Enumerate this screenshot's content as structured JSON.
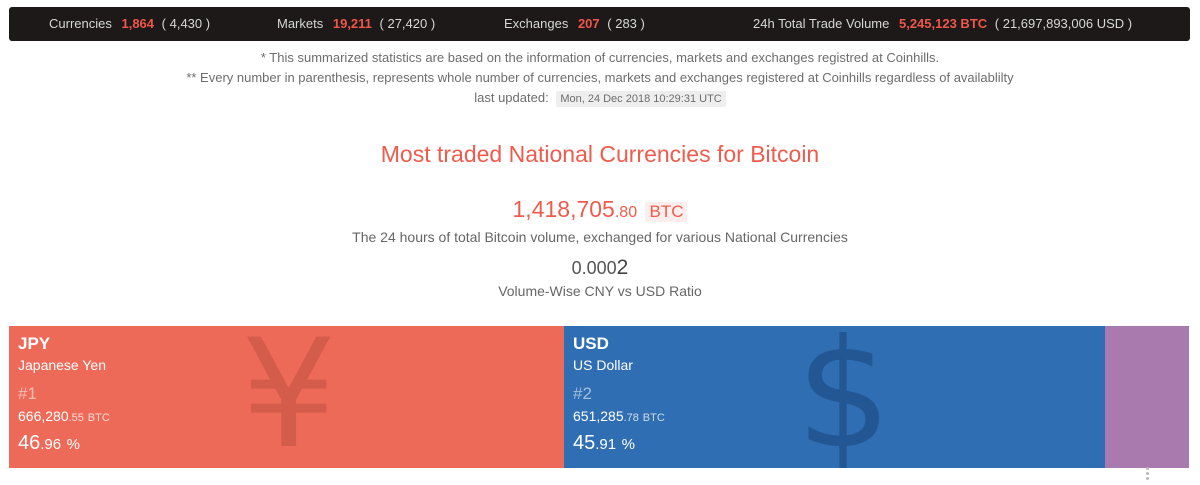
{
  "topbar": {
    "currencies": {
      "label": "Currencies",
      "value": "1,864",
      "total": "( 4,430 )"
    },
    "markets": {
      "label": "Markets",
      "value": "19,211",
      "total": "( 27,420 )"
    },
    "exchanges": {
      "label": "Exchanges",
      "value": "207",
      "total": "( 283 )"
    },
    "volume": {
      "label": "24h Total Trade Volume",
      "value": "5,245,123 BTC",
      "total": "( 21,697,893,006 USD )"
    }
  },
  "notes": {
    "line1": "* This summarized statistics are based on the information of currencies, markets and exchanges registred at Coinhills.",
    "line2": "** Every number in parenthesis, represents whole number of currencies, markets and exchanges registered at Coinhills regardless of availablilty",
    "updated_label": "last updated:",
    "updated_value": "Mon, 24 Dec 2018 10:29:31 UTC"
  },
  "headline": "Most traded National Currencies for Bitcoin",
  "total_volume": {
    "int": "1,418,705",
    "dec": ".80",
    "unit": "BTC",
    "desc": "The 24 hours of total Bitcoin volume, exchanged for various National Currencies"
  },
  "ratio": {
    "prefix": "0.000",
    "last": "2",
    "desc": "Volume-Wise CNY vs USD Ratio"
  },
  "tiles": [
    {
      "code": "JPY",
      "name": "Japanese Yen",
      "symbol": "¥",
      "rank": "#1",
      "vol_int": "666,280",
      "vol_dec": ".55",
      "vol_unit": "BTC",
      "pct_int": "46",
      "pct_dec": ".96",
      "pct_unit": "%",
      "color": "#ee6a58"
    },
    {
      "code": "USD",
      "name": "US Dollar",
      "symbol": "$",
      "rank": "#2",
      "vol_int": "651,285",
      "vol_dec": ".78",
      "vol_unit": "BTC",
      "pct_int": "45",
      "pct_dec": ".91",
      "pct_unit": "%",
      "color": "#2f6eb3"
    },
    {
      "color": "#a87aae"
    }
  ]
}
